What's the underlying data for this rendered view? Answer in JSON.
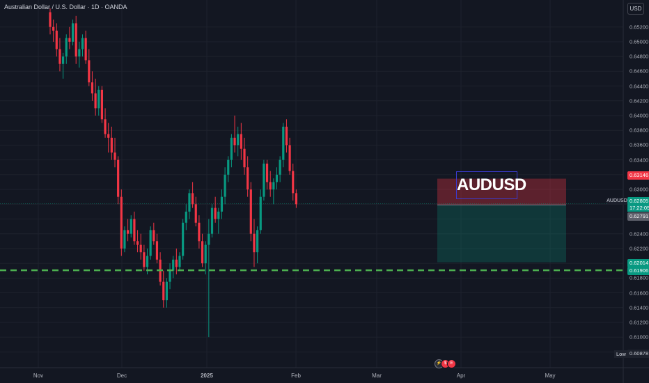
{
  "header": {
    "title": "Australian Dollar / U.S. Dollar · 1D · OANDA"
  },
  "currency": "USD",
  "colors": {
    "bull": "#089981",
    "bear": "#f23645",
    "dashed": "#4caf50",
    "stop_zone": "#f23645",
    "target_zone": "#089981"
  },
  "y_axis": {
    "ticks": [
      "0.65200",
      "0.65000",
      "0.64800",
      "0.64600",
      "0.64400",
      "0.64200",
      "0.64000",
      "0.63800",
      "0.63600",
      "0.63400",
      "0.63200",
      "0.63000",
      "0.62800",
      "0.62600",
      "0.62400",
      "0.62200",
      "0.62000",
      "0.61800",
      "0.61600",
      "0.61400",
      "0.61200",
      "0.61000",
      "0.60800"
    ]
  },
  "x_axis": {
    "labels": [
      "Nov",
      "Dec",
      "2025",
      "Feb",
      "Mar",
      "Apr",
      "May"
    ]
  },
  "price_tags": {
    "stop": "0.63146",
    "current": "0.62805",
    "timer": "17:22:05",
    "entry": "0.62791",
    "target": "0.62014",
    "support": "0.61906",
    "low": "0.60878"
  },
  "symbol": "AUDUSD",
  "low_label": "Low",
  "position_tool": {
    "label": "AUDUSD",
    "type": "short",
    "entry": 0.62791,
    "stop": 0.63146,
    "target": 0.62014
  },
  "support_line": 0.61906,
  "event_icons": [
    "lightning-icon",
    "dividend-icon",
    "earnings-icon"
  ],
  "chart_data": {
    "type": "candlestick",
    "title": "Australian Dollar / U.S. Dollar · 1D · OANDA",
    "ylim": [
      0.607,
      0.6532
    ],
    "candles": [
      [
        0.654,
        0.6545,
        0.651,
        0.652
      ],
      [
        0.652,
        0.653,
        0.65,
        0.6515
      ],
      [
        0.6515,
        0.6525,
        0.648,
        0.649
      ],
      [
        0.649,
        0.6505,
        0.646,
        0.647
      ],
      [
        0.647,
        0.6485,
        0.645,
        0.648
      ],
      [
        0.648,
        0.651,
        0.647,
        0.6505
      ],
      [
        0.6505,
        0.652,
        0.649,
        0.65
      ],
      [
        0.65,
        0.653,
        0.6495,
        0.6525
      ],
      [
        0.6525,
        0.6535,
        0.647,
        0.648
      ],
      [
        0.648,
        0.65,
        0.6465,
        0.649
      ],
      [
        0.649,
        0.651,
        0.648,
        0.6505
      ],
      [
        0.6505,
        0.6515,
        0.647,
        0.6475
      ],
      [
        0.6475,
        0.649,
        0.644,
        0.6445
      ],
      [
        0.6445,
        0.646,
        0.642,
        0.643
      ],
      [
        0.643,
        0.645,
        0.64,
        0.641
      ],
      [
        0.641,
        0.644,
        0.64,
        0.6435
      ],
      [
        0.6435,
        0.644,
        0.639,
        0.6395
      ],
      [
        0.6395,
        0.641,
        0.637,
        0.6375
      ],
      [
        0.6375,
        0.639,
        0.635,
        0.637
      ],
      [
        0.637,
        0.6385,
        0.634,
        0.635
      ],
      [
        0.635,
        0.637,
        0.633,
        0.634
      ],
      [
        0.634,
        0.6345,
        0.628,
        0.629
      ],
      [
        0.629,
        0.63,
        0.621,
        0.622
      ],
      [
        0.622,
        0.625,
        0.6215,
        0.6245
      ],
      [
        0.6245,
        0.626,
        0.623,
        0.624
      ],
      [
        0.624,
        0.6265,
        0.6235,
        0.626
      ],
      [
        0.626,
        0.627,
        0.6225,
        0.623
      ],
      [
        0.623,
        0.6245,
        0.6215,
        0.6225
      ],
      [
        0.6225,
        0.624,
        0.6205,
        0.6215
      ],
      [
        0.6215,
        0.6225,
        0.619,
        0.6195
      ],
      [
        0.6195,
        0.622,
        0.6185,
        0.621
      ],
      [
        0.621,
        0.625,
        0.6205,
        0.6245
      ],
      [
        0.6245,
        0.6255,
        0.6225,
        0.623
      ],
      [
        0.623,
        0.624,
        0.62,
        0.6205
      ],
      [
        0.6205,
        0.6215,
        0.617,
        0.6175
      ],
      [
        0.6175,
        0.619,
        0.614,
        0.615
      ],
      [
        0.615,
        0.618,
        0.614,
        0.6175
      ],
      [
        0.6175,
        0.62,
        0.6165,
        0.619
      ],
      [
        0.619,
        0.621,
        0.618,
        0.6205
      ],
      [
        0.6205,
        0.622,
        0.6185,
        0.6195
      ],
      [
        0.6195,
        0.6215,
        0.619,
        0.621
      ],
      [
        0.621,
        0.626,
        0.6205,
        0.6255
      ],
      [
        0.6255,
        0.628,
        0.6245,
        0.627
      ],
      [
        0.627,
        0.63,
        0.626,
        0.6295
      ],
      [
        0.6295,
        0.631,
        0.6275,
        0.628
      ],
      [
        0.628,
        0.629,
        0.625,
        0.6255
      ],
      [
        0.6255,
        0.6265,
        0.622,
        0.623
      ],
      [
        0.623,
        0.624,
        0.6195,
        0.62
      ],
      [
        0.62,
        0.623,
        0.6185,
        0.6225
      ],
      [
        0.6225,
        0.626,
        0.61,
        0.624
      ],
      [
        0.624,
        0.628,
        0.6235,
        0.6275
      ],
      [
        0.6275,
        0.629,
        0.6255,
        0.626
      ],
      [
        0.626,
        0.6275,
        0.624,
        0.627
      ],
      [
        0.627,
        0.63,
        0.626,
        0.629
      ],
      [
        0.629,
        0.633,
        0.628,
        0.632
      ],
      [
        0.632,
        0.6345,
        0.631,
        0.634
      ],
      [
        0.634,
        0.6375,
        0.633,
        0.637
      ],
      [
        0.637,
        0.64,
        0.635,
        0.636
      ],
      [
        0.636,
        0.6385,
        0.6345,
        0.6375
      ],
      [
        0.6375,
        0.639,
        0.634,
        0.6355
      ],
      [
        0.6355,
        0.637,
        0.632,
        0.633
      ],
      [
        0.633,
        0.6345,
        0.629,
        0.63
      ],
      [
        0.63,
        0.631,
        0.623,
        0.624
      ],
      [
        0.624,
        0.626,
        0.6195,
        0.6215
      ],
      [
        0.6215,
        0.625,
        0.62,
        0.6245
      ],
      [
        0.6245,
        0.63,
        0.624,
        0.629
      ],
      [
        0.629,
        0.634,
        0.6285,
        0.6335
      ],
      [
        0.6335,
        0.634,
        0.63,
        0.631
      ],
      [
        0.631,
        0.6325,
        0.629,
        0.63
      ],
      [
        0.63,
        0.6315,
        0.628,
        0.631
      ],
      [
        0.631,
        0.633,
        0.63,
        0.632
      ],
      [
        0.632,
        0.6345,
        0.631,
        0.634
      ],
      [
        0.634,
        0.639,
        0.633,
        0.6385
      ],
      [
        0.6385,
        0.6395,
        0.635,
        0.636
      ],
      [
        0.636,
        0.637,
        0.632,
        0.6325
      ],
      [
        0.6325,
        0.6335,
        0.6285,
        0.6295
      ],
      [
        0.6295,
        0.63,
        0.6275,
        0.628
      ]
    ]
  }
}
